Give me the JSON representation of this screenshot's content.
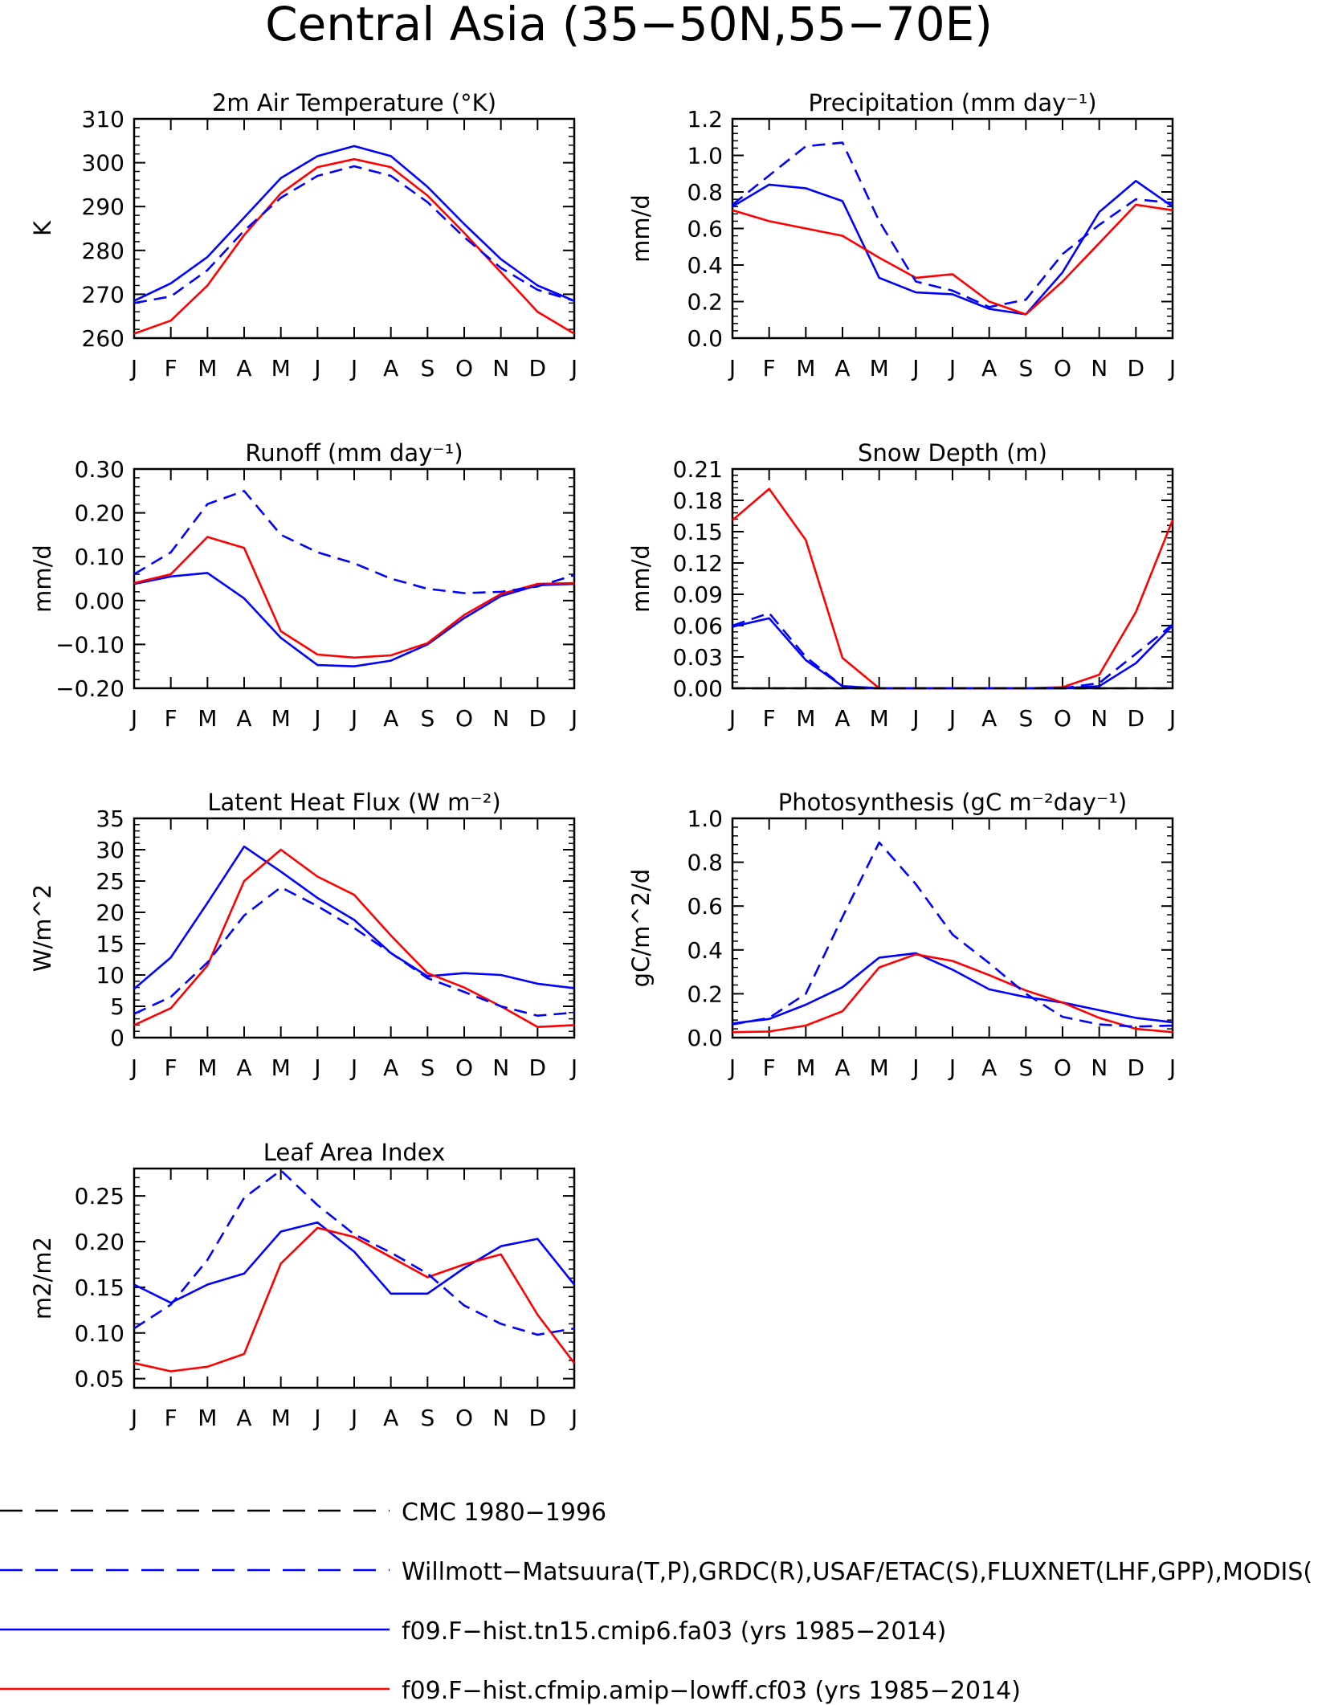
{
  "figure_title": "Central Asia (35−50N,55−70E)",
  "colors": {
    "model_a": "#0000ff",
    "model_b": "#ff0000",
    "obs": "#0000ff",
    "cmc": "#000000"
  },
  "legend": [
    {
      "label": "CMC 1980−1996",
      "color": "#000000",
      "style": "dashed"
    },
    {
      "label": "Willmott−Matsuura(T,P),GRDC(R),USAF/ETAC(S),FLUXNET(LHF,GPP),MODIS(",
      "color": "#0000ff",
      "style": "dashed"
    },
    {
      "label": "f09.F−hist.tn15.cmip6.fa03 (yrs 1985−2014)",
      "color": "#0000ff",
      "style": "solid"
    },
    {
      "label": "f09.F−hist.cfmip.amip−lowff.cf03 (yrs 1985−2014)",
      "color": "#ff0000",
      "style": "solid"
    }
  ],
  "chart_data": [
    {
      "type": "line",
      "title": "2m Air Temperature (°K)",
      "ylabel": "K",
      "ylim": [
        260,
        310
      ],
      "yticks": [
        "260",
        "270",
        "280",
        "290",
        "300",
        "310"
      ],
      "x": [
        "J",
        "F",
        "M",
        "A",
        "M",
        "J",
        "J",
        "A",
        "S",
        "O",
        "N",
        "D",
        "J"
      ],
      "series": [
        {
          "name": "f09.F−hist.tn15.cmip6.fa03 (yrs 1985−2014)",
          "color": "#0000ff",
          "style": "solid",
          "values": [
            268.5,
            272.5,
            278.5,
            287.5,
            296.5,
            301.5,
            303.8,
            301.5,
            294.5,
            286.0,
            278.0,
            272.0,
            268.5
          ]
        },
        {
          "name": "f09.F−hist.cfmip.amip−lowff.cf03 (yrs 1985−2014)",
          "color": "#ff0000",
          "style": "solid",
          "values": [
            261.0,
            264.0,
            272.0,
            283.5,
            293.0,
            299.0,
            300.8,
            299.0,
            292.5,
            284.0,
            275.0,
            266.0,
            261.0
          ]
        },
        {
          "name": "Willmott−Matsuura(T,P),GRDC(R),USAF/ETAC(S),FLUXNET(LHF,GPP),MODIS(",
          "color": "#0000ff",
          "style": "dashed",
          "values": [
            268.0,
            269.5,
            275.5,
            284.5,
            292.0,
            297.0,
            299.2,
            297.0,
            291.0,
            283.0,
            276.0,
            271.0,
            268.5
          ]
        }
      ]
    },
    {
      "type": "line",
      "title": "Precipitation (mm day⁻¹)",
      "ylabel": "mm/d",
      "ylim": [
        0,
        1.2
      ],
      "yticks": [
        "0.0",
        "0.2",
        "0.4",
        "0.6",
        "0.8",
        "1.0",
        "1.2"
      ],
      "x": [
        "J",
        "F",
        "M",
        "A",
        "M",
        "J",
        "J",
        "A",
        "S",
        "O",
        "N",
        "D",
        "J"
      ],
      "series": [
        {
          "name": "f09.F−hist.tn15.cmip6.fa03 (yrs 1985−2014)",
          "color": "#0000ff",
          "style": "solid",
          "values": [
            0.72,
            0.84,
            0.82,
            0.75,
            0.33,
            0.25,
            0.24,
            0.16,
            0.13,
            0.36,
            0.69,
            0.86,
            0.72
          ]
        },
        {
          "name": "f09.F−hist.cfmip.amip−lowff.cf03 (yrs 1985−2014)",
          "color": "#ff0000",
          "style": "solid",
          "values": [
            0.7,
            0.64,
            0.6,
            0.56,
            0.44,
            0.33,
            0.35,
            0.2,
            0.13,
            0.31,
            0.52,
            0.73,
            0.7
          ]
        },
        {
          "name": "Willmott−Matsuura(T,P),GRDC(R),USAF/ETAC(S),FLUXNET(LHF,GPP),MODIS(",
          "color": "#0000ff",
          "style": "dashed",
          "values": [
            0.73,
            0.89,
            1.05,
            1.07,
            0.64,
            0.31,
            0.26,
            0.17,
            0.21,
            0.46,
            0.62,
            0.76,
            0.74
          ]
        }
      ]
    },
    {
      "type": "line",
      "title": "Runoff (mm day⁻¹)",
      "ylabel": "mm/d",
      "ylim": [
        -0.2,
        0.3
      ],
      "yticks": [
        "−0.20",
        "−0.10",
        "0.00",
        "0.10",
        "0.20",
        "0.30"
      ],
      "x": [
        "J",
        "F",
        "M",
        "A",
        "M",
        "J",
        "J",
        "A",
        "S",
        "O",
        "N",
        "D",
        "J"
      ],
      "series": [
        {
          "name": "f09.F−hist.tn15.cmip6.fa03 (yrs 1985−2014)",
          "color": "#0000ff",
          "style": "solid",
          "values": [
            0.038,
            0.055,
            0.063,
            0.005,
            -0.085,
            -0.147,
            -0.15,
            -0.137,
            -0.1,
            -0.04,
            0.01,
            0.035,
            0.038
          ]
        },
        {
          "name": "f09.F−hist.cfmip.amip−lowff.cf03 (yrs 1985−2014)",
          "color": "#ff0000",
          "style": "solid",
          "values": [
            0.04,
            0.06,
            0.145,
            0.12,
            -0.07,
            -0.123,
            -0.13,
            -0.125,
            -0.097,
            -0.033,
            0.015,
            0.038,
            0.04
          ]
        },
        {
          "name": "Willmott−Matsuura(T,P),GRDC(R),USAF/ETAC(S),FLUXNET(LHF,GPP),MODIS(",
          "color": "#0000ff",
          "style": "dashed",
          "values": [
            0.06,
            0.11,
            0.22,
            0.25,
            0.15,
            0.11,
            0.085,
            0.05,
            0.027,
            0.017,
            0.02,
            0.032,
            0.058
          ]
        }
      ]
    },
    {
      "type": "line",
      "title": "Snow Depth (m)",
      "ylabel": "mm/d",
      "ylim": [
        0,
        0.21
      ],
      "yticks": [
        "0.00",
        "0.03",
        "0.06",
        "0.09",
        "0.12",
        "0.15",
        "0.18",
        "0.21"
      ],
      "x": [
        "J",
        "F",
        "M",
        "A",
        "M",
        "J",
        "J",
        "A",
        "S",
        "O",
        "N",
        "D",
        "J"
      ],
      "series": [
        {
          "name": "f09.F−hist.tn15.cmip6.fa03 (yrs 1985−2014)",
          "color": "#0000ff",
          "style": "solid",
          "values": [
            0.059,
            0.067,
            0.027,
            0.002,
            0,
            0,
            0,
            0,
            0,
            0,
            0.002,
            0.024,
            0.06
          ]
        },
        {
          "name": "f09.F−hist.cfmip.amip−lowff.cf03 (yrs 1985−2014)",
          "color": "#ff0000",
          "style": "solid",
          "values": [
            0.161,
            0.191,
            0.142,
            0.029,
            0,
            0,
            0,
            0,
            0,
            0.001,
            0.013,
            0.073,
            0.161
          ]
        },
        {
          "name": "Willmott−Matsuura(T,P),GRDC(R),USAF/ETAC(S),FLUXNET(LHF,GPP),MODIS(",
          "color": "#0000ff",
          "style": "dashed",
          "values": [
            0.06,
            0.072,
            0.03,
            0.002,
            0,
            0,
            0,
            0,
            0,
            0,
            0.005,
            0.033,
            0.061
          ]
        },
        {
          "name": "CMC 1980−1996",
          "color": "#000000",
          "style": "dashed",
          "values": [
            0,
            0,
            0,
            0,
            0,
            0,
            0,
            0,
            0,
            0,
            0,
            0,
            0
          ]
        }
      ]
    },
    {
      "type": "line",
      "title": "Latent Heat Flux (W m⁻²)",
      "ylabel": "W/m^2",
      "ylim": [
        0,
        35
      ],
      "yticks": [
        "0",
        "5",
        "10",
        "15",
        "20",
        "25",
        "30",
        "35"
      ],
      "x": [
        "J",
        "F",
        "M",
        "A",
        "M",
        "J",
        "J",
        "A",
        "S",
        "O",
        "N",
        "D",
        "J"
      ],
      "series": [
        {
          "name": "f09.F−hist.tn15.cmip6.fa03 (yrs 1985−2014)",
          "color": "#0000ff",
          "style": "solid",
          "values": [
            7.8,
            12.8,
            21.5,
            30.5,
            26.5,
            22.3,
            18.8,
            13.5,
            9.8,
            10.3,
            10.0,
            8.6,
            7.9
          ]
        },
        {
          "name": "f09.F−hist.cfmip.amip−lowff.cf03 (yrs 1985−2014)",
          "color": "#ff0000",
          "style": "solid",
          "values": [
            2.0,
            4.7,
            11.5,
            25.0,
            30.0,
            25.7,
            22.8,
            16.3,
            10.3,
            8.0,
            5.0,
            1.7,
            2.0
          ]
        },
        {
          "name": "Willmott−Matsuura(T,P),GRDC(R),USAF/ETAC(S),FLUXNET(LHF,GPP),MODIS(",
          "color": "#0000ff",
          "style": "dashed",
          "values": [
            3.8,
            6.5,
            12.0,
            19.5,
            24.0,
            21.0,
            17.5,
            13.5,
            9.5,
            7.3,
            5.0,
            3.5,
            4.0
          ]
        }
      ]
    },
    {
      "type": "line",
      "title": "Photosynthesis (gC m⁻²day⁻¹)",
      "ylabel": "gC/m^2/d",
      "ylim": [
        0,
        1.0
      ],
      "yticks": [
        "0.0",
        "0.2",
        "0.4",
        "0.6",
        "0.8",
        "1.0"
      ],
      "x": [
        "J",
        "F",
        "M",
        "A",
        "M",
        "J",
        "J",
        "A",
        "S",
        "O",
        "N",
        "D",
        "J"
      ],
      "series": [
        {
          "name": "f09.F−hist.tn15.cmip6.fa03 (yrs 1985−2014)",
          "color": "#0000ff",
          "style": "solid",
          "values": [
            0.065,
            0.085,
            0.15,
            0.23,
            0.365,
            0.385,
            0.31,
            0.22,
            0.185,
            0.16,
            0.125,
            0.09,
            0.07
          ]
        },
        {
          "name": "f09.F−hist.cfmip.amip−lowff.cf03 (yrs 1985−2014)",
          "color": "#ff0000",
          "style": "solid",
          "values": [
            0.025,
            0.028,
            0.055,
            0.12,
            0.32,
            0.38,
            0.35,
            0.285,
            0.215,
            0.16,
            0.09,
            0.04,
            0.025
          ]
        },
        {
          "name": "Willmott−Matsuura(T,P),GRDC(R),USAF/ETAC(S),FLUXNET(LHF,GPP),MODIS(",
          "color": "#0000ff",
          "style": "dashed",
          "values": [
            0.06,
            0.09,
            0.2,
            0.55,
            0.89,
            0.7,
            0.47,
            0.34,
            0.2,
            0.095,
            0.06,
            0.05,
            0.055
          ]
        }
      ]
    },
    {
      "type": "line",
      "title": "Leaf Area Index",
      "ylabel": "m2/m2",
      "ylim": [
        0.04,
        0.28
      ],
      "yticks": [
        "0.05",
        "0.10",
        "0.15",
        "0.20",
        "0.25"
      ],
      "ytick_values": [
        0.05,
        0.1,
        0.15,
        0.2,
        0.25
      ],
      "x": [
        "J",
        "F",
        "M",
        "A",
        "M",
        "J",
        "J",
        "A",
        "S",
        "O",
        "N",
        "D",
        "J"
      ],
      "series": [
        {
          "name": "f09.F−hist.tn15.cmip6.fa03 (yrs 1985−2014)",
          "color": "#0000ff",
          "style": "solid",
          "values": [
            0.153,
            0.133,
            0.153,
            0.165,
            0.211,
            0.221,
            0.189,
            0.143,
            0.143,
            0.171,
            0.195,
            0.203,
            0.153
          ]
        },
        {
          "name": "f09.F−hist.cfmip.amip−lowff.cf03 (yrs 1985−2014)",
          "color": "#ff0000",
          "style": "solid",
          "values": [
            0.067,
            0.058,
            0.063,
            0.077,
            0.176,
            0.215,
            0.205,
            0.183,
            0.161,
            0.175,
            0.186,
            0.12,
            0.067
          ]
        },
        {
          "name": "Willmott−Matsuura(T,P),GRDC(R),USAF/ETAC(S),FLUXNET(LHF,GPP),MODIS(",
          "color": "#0000ff",
          "style": "dashed",
          "values": [
            0.105,
            0.131,
            0.18,
            0.248,
            0.278,
            0.24,
            0.208,
            0.188,
            0.165,
            0.13,
            0.11,
            0.098,
            0.105
          ]
        }
      ]
    }
  ]
}
